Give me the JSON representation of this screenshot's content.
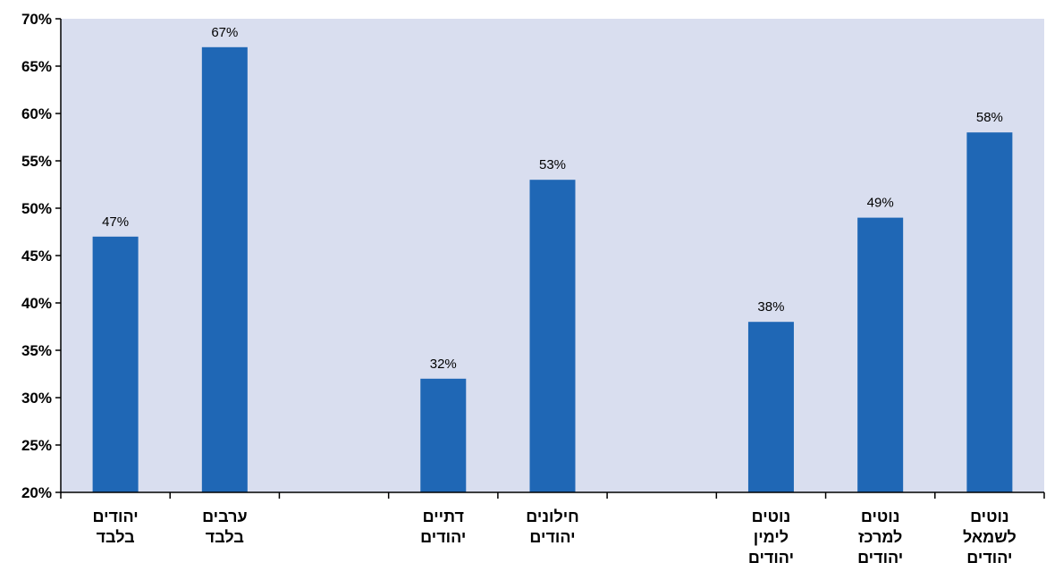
{
  "chart_data": {
    "type": "bar",
    "title": "",
    "xlabel": "",
    "ylabel": "",
    "ylim": [
      20,
      70
    ],
    "yticks": [
      "20%",
      "25%",
      "30%",
      "35%",
      "40%",
      "45%",
      "50%",
      "55%",
      "60%",
      "65%",
      "70%"
    ],
    "grid": false,
    "legend": "none",
    "colors": {
      "plot_background": "#d9deef",
      "bar": "#1f67b5",
      "axis": "#000000"
    },
    "categories": [
      [
        "יהודים",
        "בלבד"
      ],
      [
        "ערבים",
        "בלבד"
      ],
      [],
      [
        "דתיים",
        "יהודים"
      ],
      [
        "חילונים",
        "יהודים"
      ],
      [],
      [
        "נוטים",
        "לימין",
        "יהודים"
      ],
      [
        "נוטים",
        "למרכז",
        "יהודים"
      ],
      [
        "נוטים",
        "לשמאל",
        "יהודים"
      ]
    ],
    "values": [
      47,
      67,
      null,
      32,
      53,
      null,
      38,
      49,
      58
    ],
    "data_labels": [
      "47%",
      "67%",
      "",
      "32%",
      "53%",
      "",
      "38%",
      "49%",
      "58%"
    ]
  }
}
